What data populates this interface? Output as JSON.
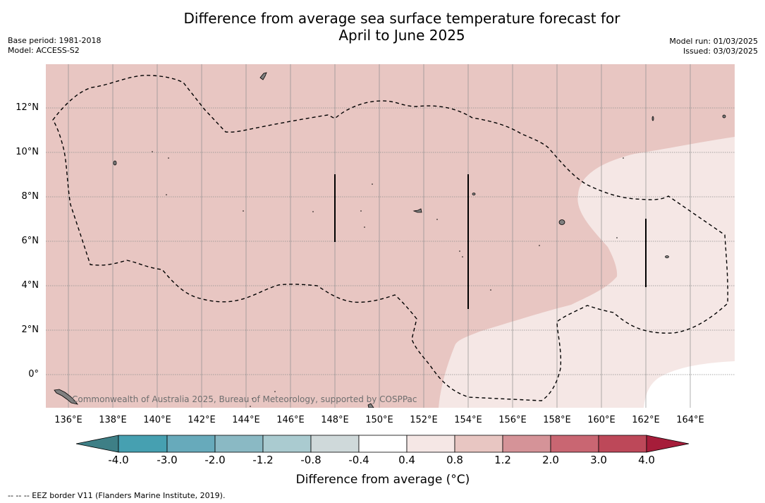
{
  "title": {
    "line1": "Difference from average sea surface temperature forecast for",
    "line2": "April to June 2025"
  },
  "meta_left": {
    "base_period": "Base period: 1981-2018",
    "model": "Model: ACCESS-S2"
  },
  "meta_right": {
    "model_run": "Model run: 01/03/2025",
    "issued": "Issued: 03/03/2025"
  },
  "map": {
    "lat_labels": [
      "12°N",
      "10°N",
      "8°N",
      "6°N",
      "4°N",
      "2°N",
      "0°"
    ],
    "lon_labels": [
      "136°E",
      "138°E",
      "140°E",
      "142°E",
      "144°E",
      "146°E",
      "148°E",
      "150°E",
      "152°E",
      "154°E",
      "156°E",
      "158°E",
      "160°E",
      "162°E",
      "164°E"
    ],
    "credit": "Commonwealth of Australia 2025, Bureau of Meteorology, supported by COSPPac",
    "colors": {
      "anomaly_0_8_to_1_2": "#e8c6c2",
      "anomaly_0_4_to_0_8": "#f5e7e5",
      "anomaly_neutral": "#ffffff"
    }
  },
  "colorbar": {
    "ticks": [
      "-4.0",
      "-3.0",
      "-2.0",
      "-1.2",
      "-0.8",
      "-0.4",
      "0.4",
      "0.8",
      "1.2",
      "2.0",
      "3.0",
      "4.0"
    ],
    "colors": [
      "#3e7f86",
      "#46a0b1",
      "#67aabb",
      "#8ab9c4",
      "#aacbd0",
      "#cfd9da",
      "#ffffff",
      "#f5e7e5",
      "#e8c6c2",
      "#d59398",
      "#c96672",
      "#bd4859",
      "#a61d3a"
    ],
    "label": "Difference from average (°C)"
  },
  "footnote": "--  --  -- EEZ border V11 (Flanders Marine Institute, 2019)."
}
